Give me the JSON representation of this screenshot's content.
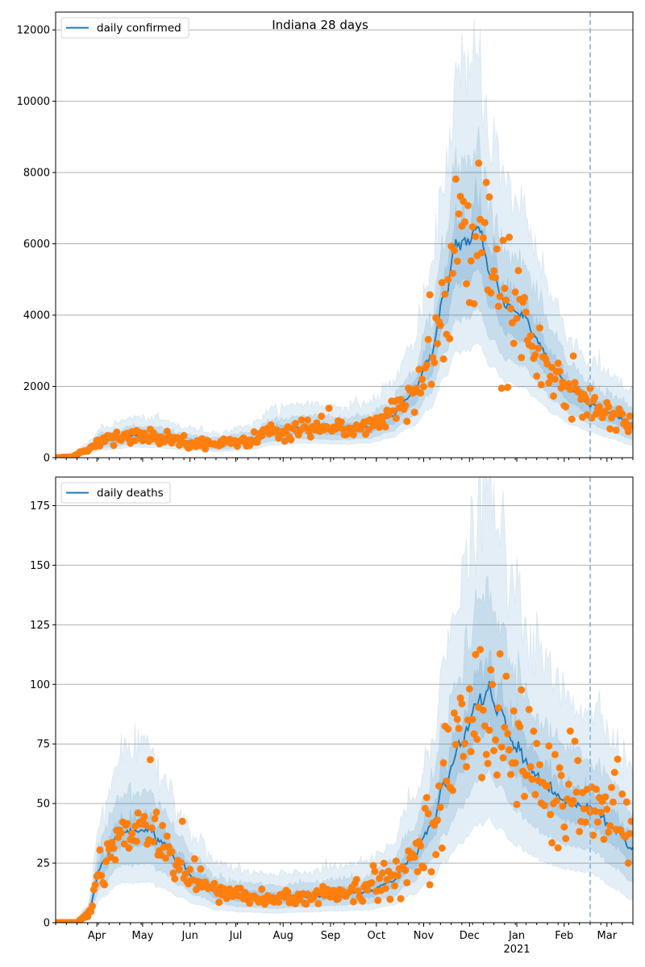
{
  "chart_data": [
    {
      "type": "line",
      "title": "Indiana 28 days",
      "xlabel": "",
      "ylabel": "",
      "x_range": [
        "2020-03-05",
        "2021-03-18"
      ],
      "ylim": [
        0,
        12500
      ],
      "yticks": [
        0,
        2000,
        4000,
        6000,
        8000,
        10000,
        12000
      ],
      "ytick_labels": [
        "0",
        "2000",
        "4000",
        "6000",
        "8000",
        "10000",
        "12000"
      ],
      "grid": "horizontal",
      "legend": {
        "position": "top-left",
        "entries": [
          "daily confirmed"
        ]
      },
      "forecast_start": "2021-02-18",
      "series": [
        {
          "name": "daily confirmed",
          "kind": "model-median",
          "knots": [
            [
              "2020-03-05",
              0
            ],
            [
              "2020-03-15",
              20
            ],
            [
              "2020-03-25",
              200
            ],
            [
              "2020-04-05",
              480
            ],
            [
              "2020-04-25",
              620
            ],
            [
              "2020-05-10",
              600
            ],
            [
              "2020-06-01",
              450
            ],
            [
              "2020-06-20",
              380
            ],
            [
              "2020-07-10",
              500
            ],
            [
              "2020-07-25",
              750
            ],
            [
              "2020-08-15",
              850
            ],
            [
              "2020-09-05",
              800
            ],
            [
              "2020-09-25",
              850
            ],
            [
              "2020-10-10",
              1150
            ],
            [
              "2020-10-25",
              1800
            ],
            [
              "2020-11-05",
              2800
            ],
            [
              "2020-11-15",
              4500
            ],
            [
              "2020-11-22",
              6000
            ],
            [
              "2020-12-01",
              6100
            ],
            [
              "2020-12-07",
              6400
            ],
            [
              "2020-12-15",
              5200
            ],
            [
              "2020-12-25",
              4300
            ],
            [
              "2021-01-05",
              4000
            ],
            [
              "2021-01-15",
              3300
            ],
            [
              "2021-01-25",
              2500
            ],
            [
              "2021-02-05",
              1900
            ],
            [
              "2021-02-18",
              1500
            ],
            [
              "2021-03-01",
              1300
            ],
            [
              "2021-03-18",
              950
            ]
          ]
        },
        {
          "name": "observed",
          "kind": "scatter",
          "color": "#ff7f0e",
          "note": "approx. one point per day, scattered around the median"
        }
      ],
      "bands": [
        {
          "name": "inner",
          "lower_ratio": 0.82,
          "upper_ratio": 1.12
        },
        {
          "name": "middle",
          "lower_ratio": 0.65,
          "upper_ratio": 1.35
        },
        {
          "name": "outer",
          "lower_ratio": 0.5,
          "upper_ratio": 1.75
        }
      ],
      "colors": {
        "line": "#1f77b4",
        "band": "#1f77b4",
        "points": "#ff7f0e",
        "forecast_line": "#7fb2d5"
      }
    },
    {
      "type": "line",
      "title": "",
      "xlabel": "",
      "ylabel": "",
      "x_range": [
        "2020-03-05",
        "2021-03-18"
      ],
      "ylim": [
        0,
        187
      ],
      "yticks": [
        0,
        25,
        50,
        75,
        100,
        125,
        150,
        175
      ],
      "ytick_labels": [
        "0",
        "25",
        "50",
        "75",
        "100",
        "125",
        "150",
        "175"
      ],
      "xtick_labels": [
        "Apr",
        "May",
        "Jun",
        "Jul",
        "Aug",
        "Sep",
        "Oct",
        "Nov",
        "Dec",
        "Jan",
        "Feb",
        "Mar"
      ],
      "xtick_year_label": "2021",
      "grid": "horizontal",
      "legend": {
        "position": "top-left",
        "entries": [
          "daily deaths"
        ]
      },
      "forecast_start": "2021-02-18",
      "series": [
        {
          "name": "daily deaths",
          "kind": "model-median",
          "knots": [
            [
              "2020-03-05",
              0
            ],
            [
              "2020-03-18",
              0
            ],
            [
              "2020-03-25",
              3
            ],
            [
              "2020-04-05",
              25
            ],
            [
              "2020-04-15",
              37
            ],
            [
              "2020-04-25",
              39
            ],
            [
              "2020-05-05",
              39
            ],
            [
              "2020-05-15",
              33
            ],
            [
              "2020-05-25",
              25
            ],
            [
              "2020-06-05",
              18
            ],
            [
              "2020-06-20",
              13
            ],
            [
              "2020-07-05",
              11
            ],
            [
              "2020-07-25",
              10
            ],
            [
              "2020-08-15",
              11
            ],
            [
              "2020-09-05",
              12
            ],
            [
              "2020-09-25",
              13
            ],
            [
              "2020-10-10",
              17
            ],
            [
              "2020-10-25",
              27
            ],
            [
              "2020-11-05",
              40
            ],
            [
              "2020-11-15",
              58
            ],
            [
              "2020-11-25",
              75
            ],
            [
              "2020-12-05",
              90
            ],
            [
              "2020-12-13",
              98
            ],
            [
              "2020-12-20",
              88
            ],
            [
              "2021-01-01",
              73
            ],
            [
              "2021-01-10",
              65
            ],
            [
              "2021-01-20",
              57
            ],
            [
              "2021-02-01",
              51
            ],
            [
              "2021-02-18",
              48
            ],
            [
              "2021-03-05",
              40
            ],
            [
              "2021-03-18",
              31
            ]
          ]
        },
        {
          "name": "observed",
          "kind": "scatter",
          "color": "#ff7f0e"
        }
      ],
      "bands": [
        {
          "name": "inner",
          "lower_ratio": 0.85,
          "upper_ratio": 1.12
        },
        {
          "name": "middle",
          "lower_ratio": 0.65,
          "upper_ratio": 1.4
        },
        {
          "name": "outer",
          "lower_ratio": 0.45,
          "upper_ratio": 1.85
        }
      ],
      "colors": {
        "line": "#1f77b4",
        "band": "#1f77b4",
        "points": "#ff7f0e",
        "forecast_line": "#7fb2d5"
      }
    }
  ]
}
